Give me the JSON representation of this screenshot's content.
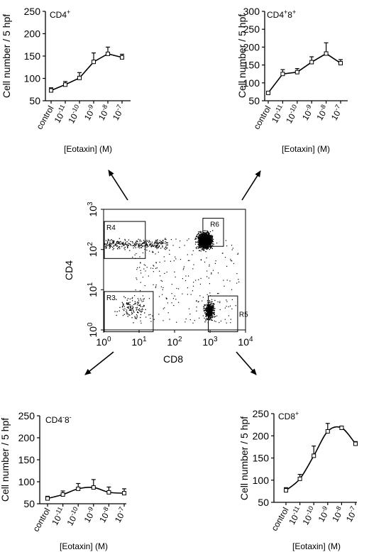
{
  "figure": {
    "flow_plot": {
      "xlabel": "CD8",
      "ylabel": "CD4",
      "gates": [
        "R4",
        "R6",
        "R3",
        "R5"
      ]
    }
  },
  "chart_data": [
    {
      "type": "line",
      "panel": "top-left",
      "title": "CD4+",
      "title_parts": {
        "base": "CD4",
        "sup": "+"
      },
      "xlabel": "[Eotaxin] (M)",
      "ylabel": "Cell number / 5 hpf",
      "categories": [
        "control",
        "10-11",
        "10-10",
        "10-9",
        "10-8",
        "10-7"
      ],
      "tick_labels": [
        {
          "base": "control",
          "sup": ""
        },
        {
          "base": "10",
          "sup": "-11"
        },
        {
          "base": "10",
          "sup": "-10"
        },
        {
          "base": "10",
          "sup": "-9"
        },
        {
          "base": "10",
          "sup": "-8"
        },
        {
          "base": "10",
          "sup": "-7"
        }
      ],
      "values": [
        73,
        86,
        101,
        137,
        155,
        147
      ],
      "error": [
        6,
        7,
        12,
        20,
        15,
        7
      ],
      "ylim": [
        50,
        250
      ],
      "yticks": [
        50,
        100,
        150,
        200,
        250
      ],
      "smooth": false
    },
    {
      "type": "line",
      "panel": "top-right",
      "title": "CD4+8+",
      "title_parts": {
        "base": "CD4",
        "sup": "+",
        "base2": "8",
        "sup2": "+"
      },
      "xlabel": "[Eotaxin] (M)",
      "ylabel": "Cell number / 5 hpf",
      "categories": [
        "control",
        "10-11",
        "10-10",
        "10-9",
        "10-8",
        "10-7"
      ],
      "tick_labels": [
        {
          "base": "control",
          "sup": ""
        },
        {
          "base": "10",
          "sup": "-11"
        },
        {
          "base": "10",
          "sup": "-10"
        },
        {
          "base": "10",
          "sup": "-9"
        },
        {
          "base": "10",
          "sup": "-8"
        },
        {
          "base": "10",
          "sup": "-7"
        }
      ],
      "values": [
        72,
        125,
        130,
        158,
        182,
        155
      ],
      "error": [
        4,
        12,
        10,
        15,
        30,
        10
      ],
      "ylim": [
        50,
        300
      ],
      "yticks": [
        50,
        100,
        150,
        200,
        250,
        300
      ],
      "smooth": false
    },
    {
      "type": "line",
      "panel": "bottom-left",
      "title": "CD4-8-",
      "title_parts": {
        "base": "CD4",
        "sup": "-",
        "base2": "8",
        "sup2": "-"
      },
      "xlabel": "[Eotaxin] (M)",
      "ylabel": "Cell number / 5 hpf",
      "categories": [
        "control",
        "10-11",
        "10-10",
        "10-9",
        "10-8",
        "10-7"
      ],
      "tick_labels": [
        {
          "base": "control",
          "sup": ""
        },
        {
          "base": "10",
          "sup": "-11"
        },
        {
          "base": "10",
          "sup": "-10"
        },
        {
          "base": "10",
          "sup": "-9"
        },
        {
          "base": "10",
          "sup": "-8"
        },
        {
          "base": "10",
          "sup": "-7"
        }
      ],
      "values": [
        62,
        71,
        84,
        87,
        76,
        74
      ],
      "error": [
        5,
        8,
        12,
        18,
        12,
        10
      ],
      "ylim": [
        50,
        250
      ],
      "yticks": [
        50,
        100,
        150,
        200,
        250
      ],
      "smooth": true
    },
    {
      "type": "line",
      "panel": "bottom-right",
      "title": "CD8+",
      "title_parts": {
        "base": "CD8",
        "sup": "+"
      },
      "xlabel": "[Eotaxin] (M)",
      "ylabel": "Cell number / 5 hpf",
      "categories": [
        "control",
        "10-11",
        "10-10",
        "10-9",
        "10-8",
        "10-7"
      ],
      "tick_labels": [
        {
          "base": "control",
          "sup": ""
        },
        {
          "base": "10",
          "sup": "-11"
        },
        {
          "base": "10",
          "sup": "-10"
        },
        {
          "base": "10",
          "sup": "-9"
        },
        {
          "base": "10",
          "sup": "-8"
        },
        {
          "base": "10",
          "sup": "-7"
        }
      ],
      "values": [
        77,
        103,
        155,
        210,
        218,
        182
      ],
      "error": [
        6,
        10,
        22,
        18,
        4,
        5
      ],
      "ylim": [
        50,
        250
      ],
      "yticks": [
        50,
        100,
        150,
        200,
        250
      ],
      "smooth": true
    },
    {
      "type": "scatter",
      "panel": "center",
      "title": "",
      "xlabel": "CD8",
      "ylabel": "CD4",
      "axis_scale": "log",
      "xlim": [
        1,
        10000
      ],
      "ylim": [
        1,
        1000
      ],
      "x_ticks": [
        {
          "base": "10",
          "sup": "0"
        },
        {
          "base": "10",
          "sup": "1"
        },
        {
          "base": "10",
          "sup": "2"
        },
        {
          "base": "10",
          "sup": "3"
        },
        {
          "base": "10",
          "sup": "4"
        }
      ],
      "y_ticks": [
        {
          "base": "10",
          "sup": "0"
        },
        {
          "base": "10",
          "sup": "1"
        },
        {
          "base": "10",
          "sup": "2"
        },
        {
          "base": "10",
          "sup": "3"
        }
      ],
      "gates": [
        {
          "name": "R4",
          "x": [
            1,
            15
          ],
          "y": [
            60,
            500
          ]
        },
        {
          "name": "R6",
          "x": [
            600,
            2400
          ],
          "y": [
            120,
            600
          ]
        },
        {
          "name": "R3",
          "x": [
            1,
            25
          ],
          "y": [
            0.9,
            9
          ]
        },
        {
          "name": "R5",
          "x": [
            850,
            6000
          ],
          "y": [
            0.9,
            7
          ]
        }
      ],
      "populations": [
        {
          "name": "CD4+",
          "cx": 5,
          "cy": 140,
          "n": 350
        },
        {
          "name": "CD4+8+",
          "cx": 700,
          "cy": 170,
          "n": 1500
        },
        {
          "name": "CD8+",
          "cx": 950,
          "cy": 3,
          "n": 420
        },
        {
          "name": "CD4-8-",
          "cx": 6,
          "cy": 3.5,
          "n": 120
        }
      ]
    }
  ]
}
